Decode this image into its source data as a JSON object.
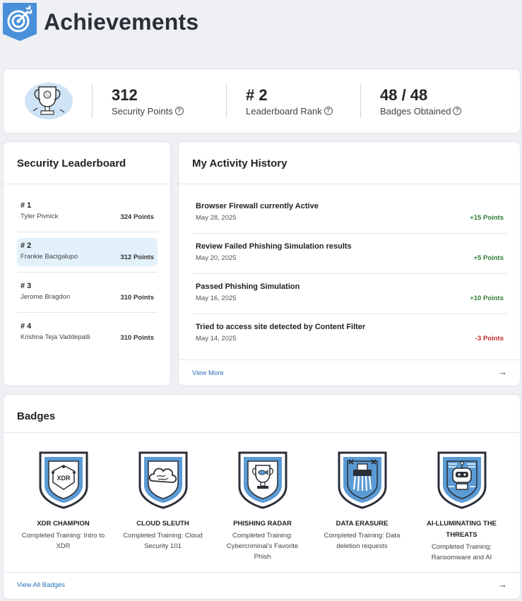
{
  "page": {
    "title": "Achievements"
  },
  "stats": [
    {
      "value": "312",
      "label": "Security Points",
      "help": "?"
    },
    {
      "value": "# 2",
      "label": "Leaderboard Rank",
      "help": "?"
    },
    {
      "value": "48 / 48",
      "label": "Badges Obtained",
      "help": "?"
    }
  ],
  "leaderboard": {
    "title": "Security Leaderboard",
    "rows": [
      {
        "rank": "# 1",
        "name": "Tyler Pivnick",
        "points": "324 Points"
      },
      {
        "rank": "# 2",
        "name": "Frankie Bacigalupo",
        "points": "312 Points"
      },
      {
        "rank": "# 3",
        "name": "Jerome Bragdon",
        "points": "310 Points"
      },
      {
        "rank": "# 4",
        "name": "Krishna Teja Vaddepalli",
        "points": "310 Points"
      }
    ]
  },
  "activity": {
    "title": "My Activity History",
    "rows": [
      {
        "title": "Browser Firewall currently Active",
        "date": "May 28, 2025",
        "points": "+15 Points"
      },
      {
        "title": "Review Failed Phishing Simulation results",
        "date": "May 20, 2025",
        "points": "+5 Points"
      },
      {
        "title": "Passed Phishing Simulation",
        "date": "May 16, 2025",
        "points": "+10 Points"
      },
      {
        "title": "Tried to access site detected by Content Filter",
        "date": "May 14, 2025",
        "points": "-3 Points"
      }
    ],
    "view_more": "View More"
  },
  "badges": {
    "title": "Badges",
    "items": [
      {
        "name": "XDR CHAMPION",
        "desc": "Completed Training: Intro to XDR",
        "emblem_text": "XDR"
      },
      {
        "name": "CLOUD SLEUTH",
        "desc": "Completed Training: Cloud Security 101"
      },
      {
        "name": "PHISHING RADAR",
        "desc": "Completed Training: Cybercriminal's Favorite Phish"
      },
      {
        "name": "DATA ERASURE",
        "desc": "Completed Training: Data deletion requests"
      },
      {
        "name": "AI-LLUMINATING THE THREATS",
        "desc": "Completed Training: Ransomware and AI"
      }
    ],
    "view_all": "View All Badges"
  },
  "colors": {
    "accent": "#2a6fb8",
    "positive": "#2e7d32",
    "negative": "#c62828",
    "badge_blue": "#5b9bd5"
  }
}
